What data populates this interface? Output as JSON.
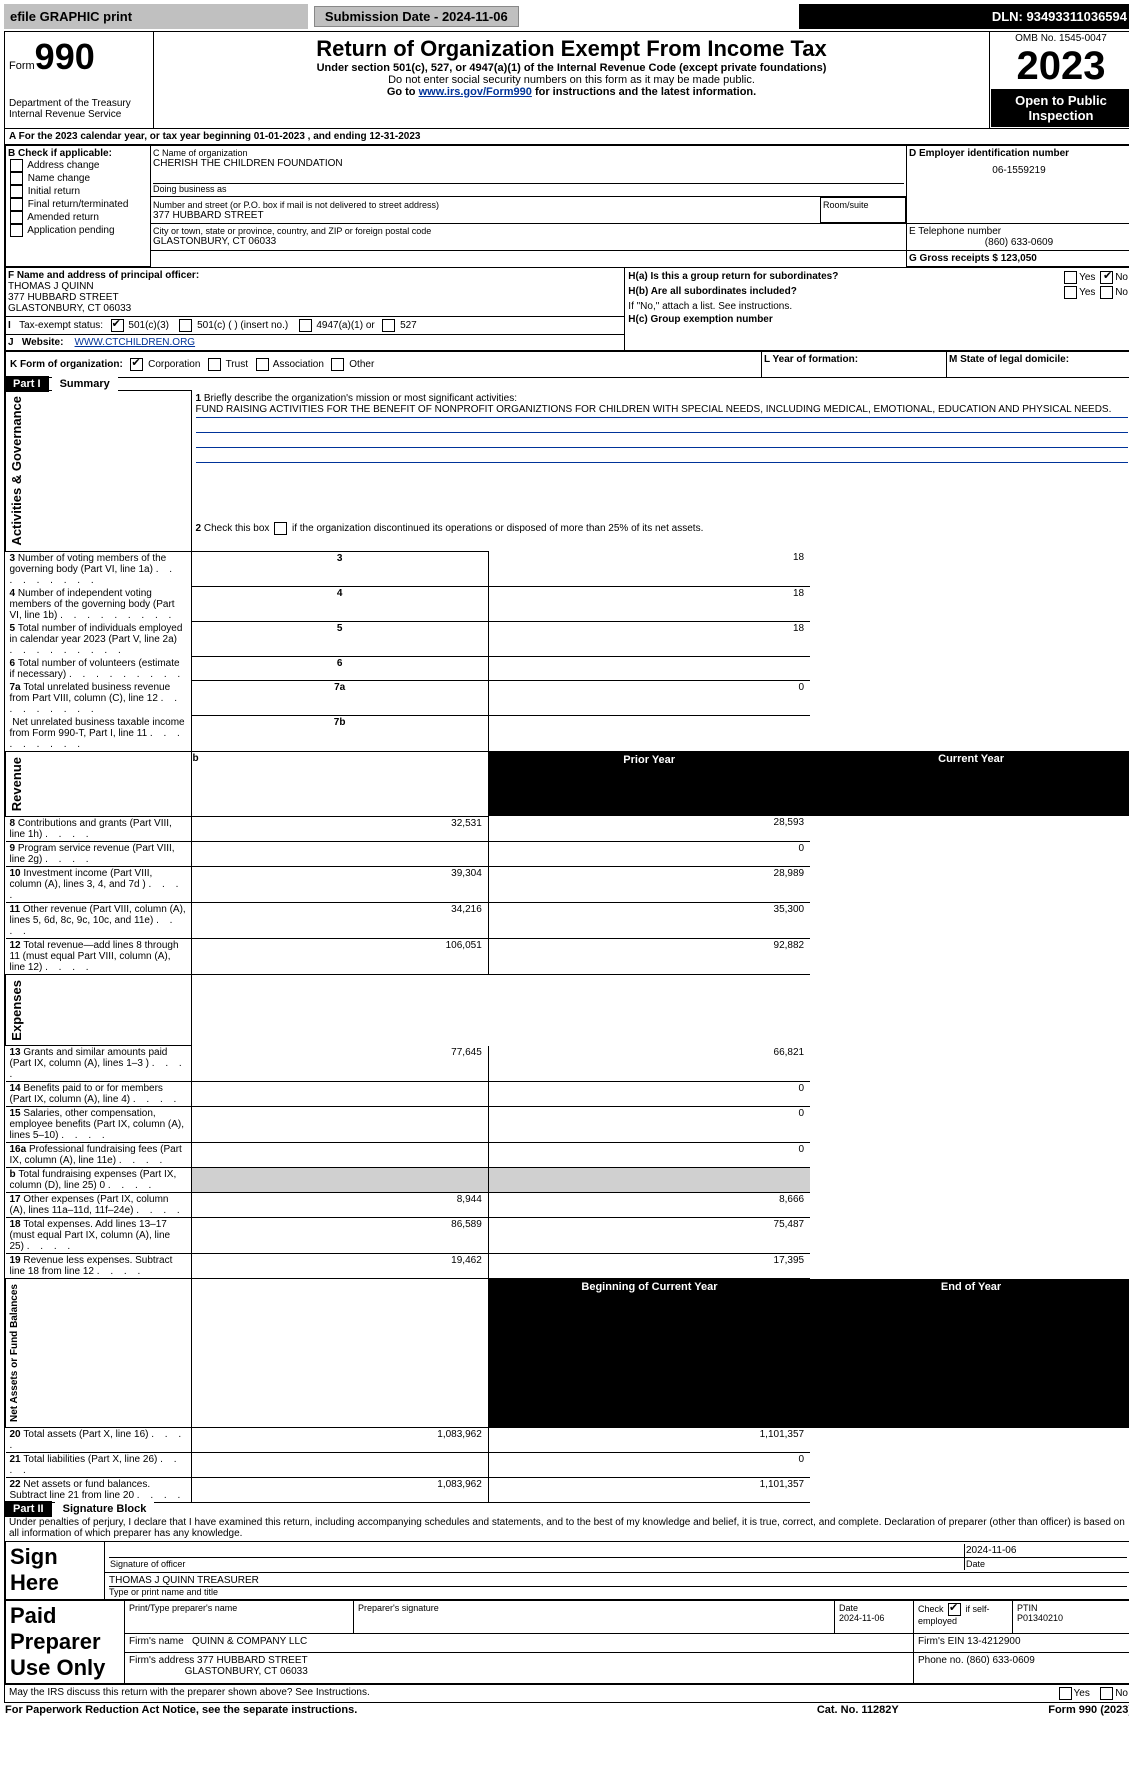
{
  "top": {
    "efile": "efile GRAPHIC print",
    "submission_label": "Submission Date - 2024-11-06",
    "dln_label": "DLN: 93493311036594"
  },
  "header": {
    "form_prefix": "Form",
    "form_num": "990",
    "dept": "Department of the Treasury\nInternal Revenue Service",
    "title": "Return of Organization Exempt From Income Tax",
    "sub1": "Under section 501(c), 527, or 4947(a)(1) of the Internal Revenue Code (except private foundations)",
    "sub2": "Do not enter social security numbers on this form as it may be made public.",
    "sub3_pre": "Go to ",
    "sub3_link": "www.irs.gov/Form990",
    "sub3_post": " for instructions and the latest information.",
    "omb": "OMB No. 1545-0047",
    "year": "2023",
    "open": "Open to Public Inspection"
  },
  "a_line": {
    "text_pre": "A For the 2023 calendar year, or tax year beginning ",
    "begin": "01-01-2023",
    "mid": " , and ending ",
    "end": "12-31-2023"
  },
  "boxB": {
    "hdr": "B Check if applicable:",
    "opts": [
      "Address change",
      "Name change",
      "Initial return",
      "Final return/terminated",
      "Amended return",
      "Application pending"
    ]
  },
  "boxC": {
    "name_lbl": "C Name of organization",
    "name": "CHERISH THE CHILDREN FOUNDATION",
    "dba_lbl": "Doing business as",
    "dba": "",
    "addr_lbl": "Number and street (or P.O. box if mail is not delivered to street address)",
    "room_lbl": "Room/suite",
    "addr": "377 HUBBARD STREET",
    "city_lbl": "City or town, state or province, country, and ZIP or foreign postal code",
    "city": "GLASTONBURY, CT  06033"
  },
  "boxD": {
    "lbl": "D Employer identification number",
    "val": "06-1559219"
  },
  "boxE": {
    "lbl": "E Telephone number",
    "val": "(860) 633-0609"
  },
  "boxG": {
    "lbl": "G Gross receipts $",
    "val": "123,050"
  },
  "boxF": {
    "lbl": "F Name and address of principal officer:",
    "name": "THOMAS J QUINN",
    "addr1": "377 HUBBARD STREET",
    "addr2": "GLASTONBURY, CT  06033"
  },
  "boxH": {
    "a": "H(a)  Is this a group return for subordinates?",
    "a_yes": "Yes",
    "a_no": "No",
    "b": "H(b)  Are all subordinates included?",
    "b_yes": "Yes",
    "b_no": "No",
    "b_note": "If \"No,\" attach a list. See instructions.",
    "c": "H(c)  Group exemption number "
  },
  "boxI": {
    "lbl": "Tax-exempt status:",
    "o1": "501(c)(3)",
    "o2": "501(c) (  ) (insert no.)",
    "o3": "4947(a)(1) or",
    "o4": "527"
  },
  "boxJ": {
    "lbl": "Website: ",
    "val": "WWW.CTCHILDREN.ORG"
  },
  "boxK": {
    "lbl": "K Form of organization:",
    "o1": "Corporation",
    "o2": "Trust",
    "o3": "Association",
    "o4": "Other"
  },
  "boxL": {
    "lbl": "L Year of formation:",
    "val": ""
  },
  "boxM": {
    "lbl": "M State of legal domicile:",
    "val": ""
  },
  "part1": {
    "num": "Part I",
    "title": "Summary"
  },
  "q1": {
    "lbl": "Briefly describe the organization's mission or most significant activities:",
    "text": "FUND RAISING ACTIVITIES FOR THE BENEFIT OF NONPROFIT ORGANIZTIONS FOR CHILDREN WITH SPECIAL NEEDS, INCLUDING MEDICAL, EMOTIONAL, EDUCATION AND PHYSICAL NEEDS."
  },
  "q2": "Check this box    if the organization discontinued its operations or disposed of more than 25% of its net assets.",
  "lines_gov": [
    {
      "n": "3",
      "t": "Number of voting members of the governing body (Part VI, line 1a)",
      "box": "3",
      "v": "18"
    },
    {
      "n": "4",
      "t": "Number of independent voting members of the governing body (Part VI, line 1b)",
      "box": "4",
      "v": "18"
    },
    {
      "n": "5",
      "t": "Total number of individuals employed in calendar year 2023 (Part V, line 2a)",
      "box": "5",
      "v": "18"
    },
    {
      "n": "6",
      "t": "Total number of volunteers (estimate if necessary)",
      "box": "6",
      "v": ""
    },
    {
      "n": "7a",
      "t": "Total unrelated business revenue from Part VIII, column (C), line 12",
      "box": "7a",
      "v": "0"
    },
    {
      "n": "",
      "t": "Net unrelated business taxable income from Form 990-T, Part I, line 11",
      "box": "7b",
      "v": ""
    }
  ],
  "col_hdrs": {
    "prior": "Prior Year",
    "current": "Current Year"
  },
  "lines_rev": [
    {
      "n": "8",
      "t": "Contributions and grants (Part VIII, line 1h)",
      "p": "32,531",
      "c": "28,593"
    },
    {
      "n": "9",
      "t": "Program service revenue (Part VIII, line 2g)",
      "p": "",
      "c": "0"
    },
    {
      "n": "10",
      "t": "Investment income (Part VIII, column (A), lines 3, 4, and 7d )",
      "p": "39,304",
      "c": "28,989"
    },
    {
      "n": "11",
      "t": "Other revenue (Part VIII, column (A), lines 5, 6d, 8c, 9c, 10c, and 11e)",
      "p": "34,216",
      "c": "35,300"
    },
    {
      "n": "12",
      "t": "Total revenue—add lines 8 through 11 (must equal Part VIII, column (A), line 12)",
      "p": "106,051",
      "c": "92,882"
    }
  ],
  "lines_exp": [
    {
      "n": "13",
      "t": "Grants and similar amounts paid (Part IX, column (A), lines 1–3 )",
      "p": "77,645",
      "c": "66,821"
    },
    {
      "n": "14",
      "t": "Benefits paid to or for members (Part IX, column (A), line 4)",
      "p": "",
      "c": "0"
    },
    {
      "n": "15",
      "t": "Salaries, other compensation, employee benefits (Part IX, column (A), lines 5–10)",
      "p": "",
      "c": "0"
    },
    {
      "n": "16a",
      "t": "Professional fundraising fees (Part IX, column (A), line 11e)",
      "p": "",
      "c": "0"
    },
    {
      "n": "b",
      "t": "Total fundraising expenses (Part IX, column (D), line 25) 0",
      "p": "SHADE",
      "c": "SHADE"
    },
    {
      "n": "17",
      "t": "Other expenses (Part IX, column (A), lines 11a–11d, 11f–24e)",
      "p": "8,944",
      "c": "8,666"
    },
    {
      "n": "18",
      "t": "Total expenses. Add lines 13–17 (must equal Part IX, column (A), line 25)",
      "p": "86,589",
      "c": "75,487"
    },
    {
      "n": "19",
      "t": "Revenue less expenses. Subtract line 18 from line 12",
      "p": "19,462",
      "c": "17,395"
    }
  ],
  "col_hdrs2": {
    "beg": "Beginning of Current Year",
    "end": "End of Year"
  },
  "lines_net": [
    {
      "n": "20",
      "t": "Total assets (Part X, line 16)",
      "p": "1,083,962",
      "c": "1,101,357"
    },
    {
      "n": "21",
      "t": "Total liabilities (Part X, line 26)",
      "p": "",
      "c": "0"
    },
    {
      "n": "22",
      "t": "Net assets or fund balances. Subtract line 21 from line 20",
      "p": "1,083,962",
      "c": "1,101,357"
    }
  ],
  "side_labels": {
    "gov": "Activities & Governance",
    "rev": "Revenue",
    "exp": "Expenses",
    "net": "Net Assets or\nFund Balances"
  },
  "part2": {
    "num": "Part II",
    "title": "Signature Block"
  },
  "perjury": "Under penalties of perjury, I declare that I have examined this return, including accompanying schedules and statements, and to the best of my knowledge and belief, it is true, correct, and complete. Declaration of preparer (other than officer) is based on all information of which preparer has any knowledge.",
  "sign": {
    "here": "Sign Here",
    "sig_lbl": "Signature of officer",
    "date_val": "2024-11-06",
    "date_lbl": "Date",
    "name": "THOMAS J QUINN  TREASURER",
    "name_lbl": "Type or print name and title"
  },
  "paid": {
    "hdr": "Paid Preparer Use Only",
    "c1": "Print/Type preparer's name",
    "c2": "Preparer's signature",
    "c3_lbl": "Date",
    "c3_val": "2024-11-06",
    "c4_lbl": "Check",
    "c4_suf": "if self-employed",
    "c5_lbl": "PTIN",
    "c5_val": "P01340210",
    "firm_lbl": "Firm's name  ",
    "firm_val": "QUINN & COMPANY LLC",
    "ein_lbl": "Firm's EIN  ",
    "ein_val": "13-4212900",
    "addr_lbl": "Firm's address ",
    "addr_val": "377 HUBBARD STREET",
    "addr_val2": "GLASTONBURY, CT  06033",
    "phone_lbl": "Phone no. ",
    "phone_val": "(860) 633-0609"
  },
  "discuss": {
    "q": "May the IRS discuss this return with the preparer shown above? See Instructions.",
    "y": "Yes",
    "n": "No"
  },
  "footer": {
    "left": "For Paperwork Reduction Act Notice, see the separate instructions.",
    "mid": "Cat. No. 11282Y",
    "right": "Form 990 (2023)"
  }
}
